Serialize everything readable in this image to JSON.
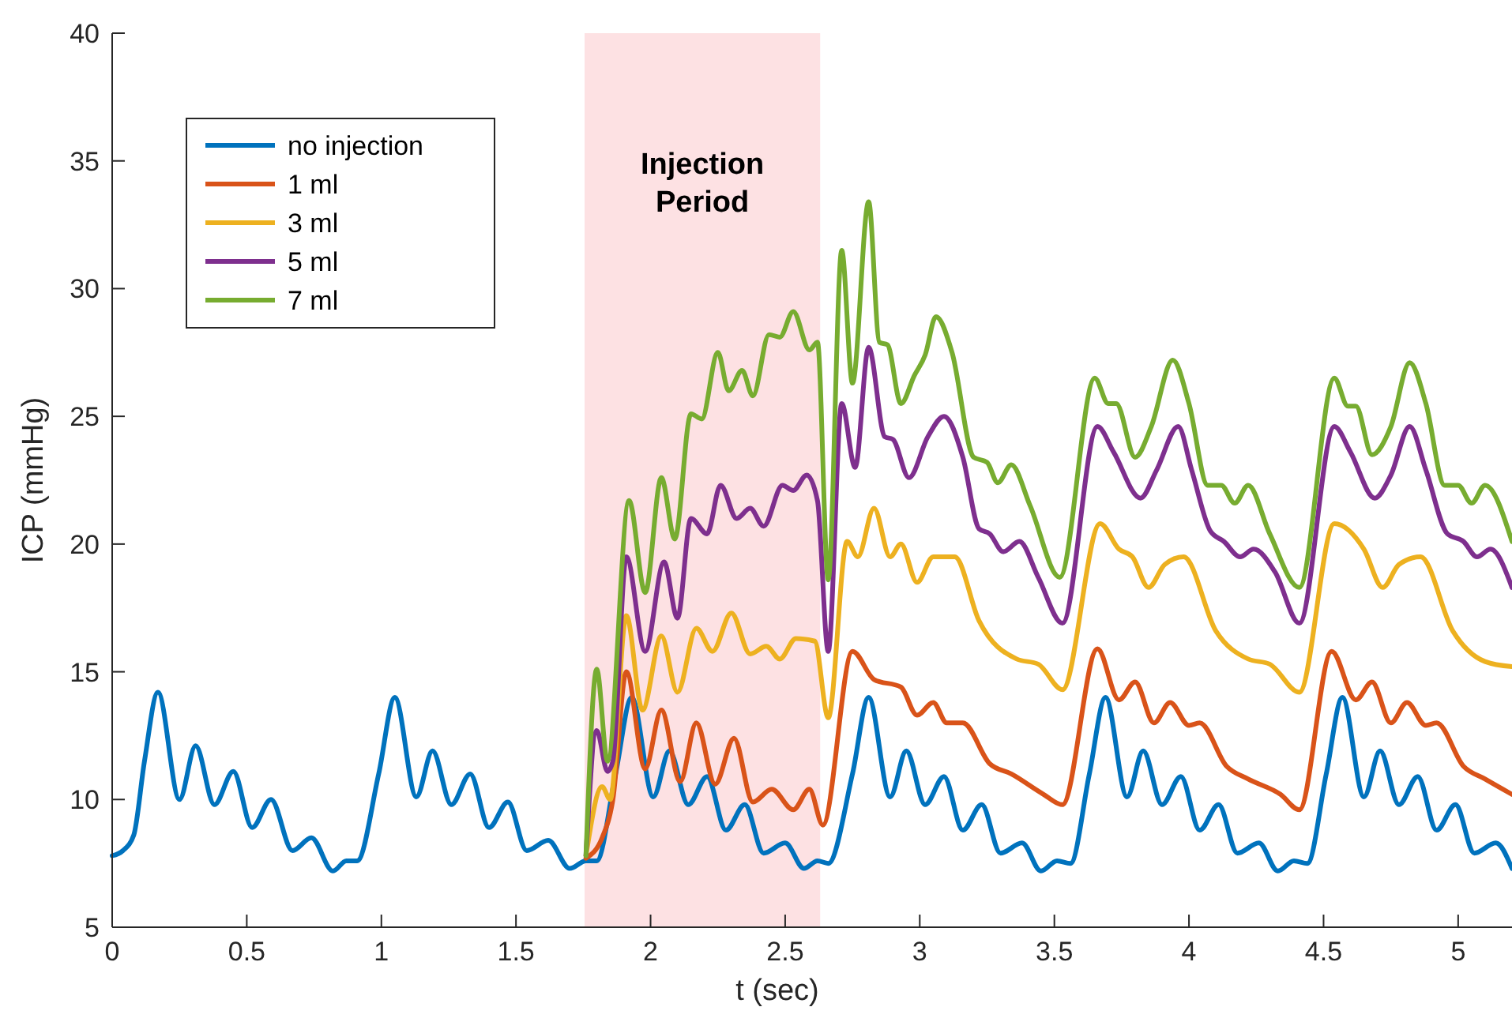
{
  "chart_data": {
    "type": "line",
    "xlabel": "t (sec)",
    "ylabel": "ICP (mmHg)",
    "xlim": [
      0,
      5.2
    ],
    "ylim": [
      5,
      40
    ],
    "xticks": [
      0,
      0.5,
      1,
      1.5,
      2,
      2.5,
      3,
      3.5,
      4,
      4.5,
      5
    ],
    "yticks": [
      5,
      10,
      15,
      20,
      25,
      30,
      35,
      40
    ],
    "grid": false,
    "legend": "top left",
    "line_style": "solid",
    "bands": [
      {
        "axis": "x",
        "from": 1.755,
        "to": 2.63,
        "label": "Injection Period",
        "color": "#fde1e3"
      }
    ],
    "series": [
      {
        "name": "no injection",
        "color": "#0072bd",
        "x": [
          0,
          0.04,
          0.08,
          0.12,
          0.17,
          0.25,
          0.31,
          0.38,
          0.45,
          0.52,
          0.59,
          0.67,
          0.74,
          0.82,
          0.87,
          0.91,
          0.99,
          1.05,
          1.13,
          1.19,
          1.26,
          1.33,
          1.4,
          1.47,
          1.54,
          1.62,
          1.7,
          1.76,
          1.8,
          1.87,
          1.93,
          2.01,
          2.07,
          2.14,
          2.21,
          2.28,
          2.35,
          2.42,
          2.5,
          2.57,
          2.62,
          2.66,
          2.75,
          2.81,
          2.89,
          2.95,
          3.02,
          3.09,
          3.16,
          3.23,
          3.3,
          3.38,
          3.45,
          3.51,
          3.56,
          3.63,
          3.69,
          3.77,
          3.83,
          3.9,
          3.97,
          4.04,
          4.11,
          4.18,
          4.26,
          4.33,
          4.39,
          4.44,
          4.51,
          4.57,
          4.65,
          4.71,
          4.78,
          4.85,
          4.92,
          4.99,
          5.06,
          5.14,
          5.2
        ],
        "values": [
          7.8,
          8.0,
          8.6,
          11.5,
          14.2,
          10.0,
          12.1,
          9.8,
          11.1,
          8.9,
          10.0,
          8.0,
          8.5,
          7.2,
          7.6,
          7.6,
          11.0,
          14.0,
          10.1,
          11.9,
          9.8,
          11.0,
          8.9,
          9.9,
          8.0,
          8.4,
          7.3,
          7.6,
          7.6,
          11.0,
          14.0,
          10.1,
          11.9,
          9.8,
          10.9,
          8.8,
          9.8,
          7.9,
          8.3,
          7.3,
          7.6,
          7.5,
          11.0,
          14.0,
          10.1,
          11.9,
          9.8,
          10.9,
          8.8,
          9.8,
          7.9,
          8.3,
          7.2,
          7.6,
          7.5,
          11.0,
          14.0,
          10.1,
          11.9,
          9.8,
          10.9,
          8.8,
          9.8,
          7.9,
          8.3,
          7.2,
          7.6,
          7.5,
          11.0,
          14.0,
          10.1,
          11.9,
          9.8,
          10.9,
          8.8,
          9.8,
          7.9,
          8.3,
          7.3
        ]
      },
      {
        "name": "1 ml",
        "color": "#d95319",
        "x": [
          1.76,
          1.82,
          1.86,
          1.91,
          1.98,
          2.04,
          2.11,
          2.17,
          2.24,
          2.31,
          2.38,
          2.45,
          2.53,
          2.59,
          2.64,
          2.75,
          2.83,
          2.93,
          2.99,
          3.05,
          3.1,
          3.16,
          3.26,
          3.34,
          3.46,
          3.53,
          3.66,
          3.74,
          3.8,
          3.87,
          3.93,
          4.0,
          4.04,
          4.14,
          4.22,
          4.34,
          4.41,
          4.53,
          4.62,
          4.68,
          4.75,
          4.81,
          4.88,
          4.92,
          5.02,
          5.1,
          5.2
        ],
        "values": [
          7.7,
          8.5,
          10.0,
          15.0,
          11.2,
          13.5,
          10.7,
          13.0,
          10.6,
          12.4,
          9.9,
          10.4,
          9.6,
          10.4,
          9.0,
          15.8,
          14.7,
          14.4,
          13.3,
          13.8,
          13.0,
          13.0,
          11.4,
          11.0,
          10.2,
          9.8,
          15.9,
          13.9,
          14.6,
          13.0,
          13.8,
          12.9,
          13.0,
          11.3,
          10.8,
          10.2,
          9.6,
          15.8,
          13.9,
          14.6,
          13.0,
          13.8,
          12.9,
          13.0,
          11.3,
          10.8,
          10.2
        ]
      },
      {
        "name": "3 ml",
        "color": "#edb120",
        "x": [
          1.76,
          1.82,
          1.85,
          1.91,
          1.97,
          2.04,
          2.1,
          2.17,
          2.23,
          2.3,
          2.37,
          2.43,
          2.48,
          2.54,
          2.61,
          2.66,
          2.73,
          2.77,
          2.83,
          2.89,
          2.93,
          2.99,
          3.05,
          3.13,
          3.22,
          3.36,
          3.44,
          3.53,
          3.67,
          3.74,
          3.79,
          3.85,
          3.91,
          3.98,
          4.1,
          4.22,
          4.3,
          4.41,
          4.54,
          4.65,
          4.72,
          4.78,
          4.86,
          4.98,
          5.1,
          5.2
        ],
        "values": [
          7.8,
          10.5,
          10.0,
          17.2,
          13.5,
          16.4,
          14.2,
          16.7,
          15.8,
          17.3,
          15.7,
          16.0,
          15.5,
          16.3,
          16.2,
          13.2,
          20.1,
          19.5,
          21.4,
          19.5,
          20.0,
          18.5,
          19.5,
          19.5,
          17.0,
          15.5,
          15.3,
          14.3,
          20.8,
          19.8,
          19.5,
          18.3,
          19.2,
          19.5,
          16.6,
          15.5,
          15.3,
          14.2,
          20.8,
          19.8,
          18.3,
          19.2,
          19.5,
          16.6,
          15.4,
          15.2
        ]
      },
      {
        "name": "5 ml",
        "color": "#7e2f8e",
        "x": [
          1.76,
          1.8,
          1.84,
          1.86,
          1.91,
          1.98,
          2.05,
          2.1,
          2.15,
          2.21,
          2.26,
          2.32,
          2.37,
          2.42,
          2.49,
          2.53,
          2.58,
          2.62,
          2.66,
          2.71,
          2.76,
          2.81,
          2.87,
          2.9,
          2.96,
          3.03,
          3.09,
          3.16,
          3.22,
          3.26,
          3.31,
          3.37,
          3.44,
          3.53,
          3.66,
          3.72,
          3.82,
          3.88,
          3.96,
          4.01,
          4.08,
          4.13,
          4.19,
          4.24,
          4.32,
          4.41,
          4.54,
          4.6,
          4.69,
          4.75,
          4.82,
          4.88,
          4.96,
          5.02,
          5.07,
          5.12,
          5.2
        ],
        "values": [
          7.8,
          12.7,
          11.1,
          11.5,
          19.5,
          15.8,
          19.3,
          17.1,
          21.0,
          20.4,
          22.3,
          21.0,
          21.4,
          20.7,
          22.3,
          22.1,
          22.7,
          21.7,
          15.8,
          25.5,
          23.0,
          27.7,
          24.2,
          24.1,
          22.6,
          24.2,
          25.0,
          23.4,
          20.6,
          20.4,
          19.7,
          20.1,
          18.7,
          16.9,
          24.6,
          23.6,
          21.8,
          22.9,
          24.6,
          22.9,
          20.5,
          20.1,
          19.5,
          19.8,
          18.9,
          16.9,
          24.6,
          23.6,
          21.8,
          22.7,
          24.6,
          22.9,
          20.4,
          20.1,
          19.5,
          19.8,
          18.3
        ]
      },
      {
        "name": "7 ml",
        "color": "#77ac30",
        "x": [
          1.76,
          1.8,
          1.84,
          1.92,
          1.98,
          2.04,
          2.09,
          2.15,
          2.19,
          2.25,
          2.29,
          2.34,
          2.38,
          2.44,
          2.48,
          2.53,
          2.59,
          2.62,
          2.66,
          2.71,
          2.75,
          2.81,
          2.85,
          2.88,
          2.93,
          2.98,
          3.02,
          3.06,
          3.12,
          3.2,
          3.25,
          3.29,
          3.34,
          3.41,
          3.52,
          3.65,
          3.7,
          3.73,
          3.8,
          3.86,
          3.94,
          4.0,
          4.07,
          4.12,
          4.17,
          4.22,
          4.3,
          4.41,
          4.54,
          4.59,
          4.62,
          4.68,
          4.75,
          4.82,
          4.88,
          4.95,
          5.0,
          5.05,
          5.1,
          5.2
        ],
        "values": [
          7.8,
          15.1,
          11.5,
          21.7,
          18.1,
          22.6,
          20.2,
          25.1,
          24.9,
          27.5,
          26.0,
          26.8,
          25.8,
          28.2,
          28.1,
          29.1,
          27.6,
          27.9,
          18.6,
          31.5,
          26.3,
          33.4,
          27.9,
          27.8,
          25.5,
          26.6,
          27.4,
          28.9,
          27.5,
          23.4,
          23.2,
          22.4,
          23.1,
          21.5,
          18.7,
          26.5,
          25.5,
          25.5,
          23.4,
          24.6,
          27.2,
          25.5,
          22.3,
          22.3,
          21.6,
          22.3,
          20.4,
          18.3,
          26.5,
          25.4,
          25.4,
          23.5,
          24.6,
          27.1,
          25.5,
          22.3,
          22.3,
          21.6,
          22.3,
          20.1
        ]
      }
    ]
  }
}
